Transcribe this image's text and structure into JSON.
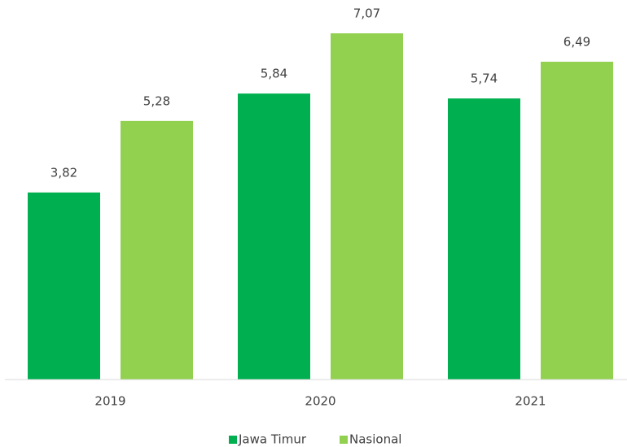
{
  "chart_data": {
    "type": "bar",
    "categories": [
      "2019",
      "2020",
      "2021"
    ],
    "series": [
      {
        "name": "Jawa Timur",
        "color": "#00b050",
        "values": [
          3.82,
          5.84,
          5.74
        ],
        "value_labels": [
          "3,82",
          "5,84",
          "5,74"
        ]
      },
      {
        "name": "Nasional",
        "color": "#92d050",
        "values": [
          5.28,
          7.07,
          6.49
        ],
        "value_labels": [
          "5,28",
          "7,07",
          "6,49"
        ]
      }
    ]
  }
}
